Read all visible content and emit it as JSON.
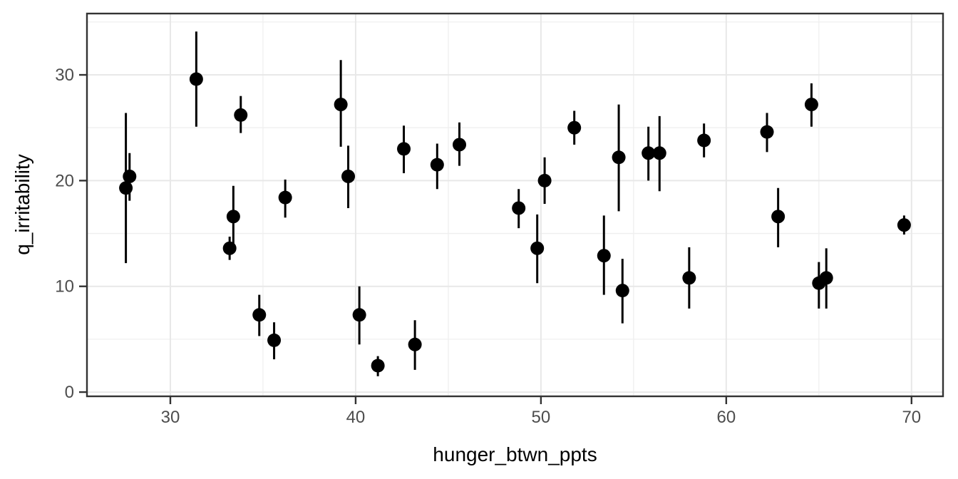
{
  "chart_data": {
    "type": "scatter",
    "subtype": "pointrange",
    "title": "",
    "xlabel": "hunger_btwn_ppts",
    "ylabel": "q_irritability",
    "x_ticks": [
      30,
      40,
      50,
      60,
      70
    ],
    "y_ticks": [
      0,
      10,
      20,
      30
    ],
    "x_minor_gridlines": [
      35,
      45,
      55,
      65
    ],
    "y_minor_gridlines": [
      5,
      15,
      25,
      35
    ],
    "xlim": [
      25.5,
      71.7
    ],
    "ylim": [
      -0.4,
      35.8
    ],
    "grid": "on",
    "legend": "none",
    "points": [
      {
        "x": 27.6,
        "y": 19.3,
        "lo": 12.2,
        "hi": 26.4
      },
      {
        "x": 27.8,
        "y": 20.4,
        "lo": 18.1,
        "hi": 22.6
      },
      {
        "x": 31.4,
        "y": 29.6,
        "lo": 25.1,
        "hi": 34.1
      },
      {
        "x": 33.2,
        "y": 13.6,
        "lo": 12.5,
        "hi": 14.7
      },
      {
        "x": 33.4,
        "y": 16.6,
        "lo": 13.5,
        "hi": 19.5
      },
      {
        "x": 33.8,
        "y": 26.2,
        "lo": 24.5,
        "hi": 28.0
      },
      {
        "x": 34.8,
        "y": 7.3,
        "lo": 5.3,
        "hi": 9.2
      },
      {
        "x": 35.6,
        "y": 4.9,
        "lo": 3.1,
        "hi": 6.6
      },
      {
        "x": 36.2,
        "y": 18.4,
        "lo": 16.5,
        "hi": 20.1
      },
      {
        "x": 39.2,
        "y": 27.2,
        "lo": 23.2,
        "hi": 31.4
      },
      {
        "x": 39.6,
        "y": 20.4,
        "lo": 17.4,
        "hi": 23.3
      },
      {
        "x": 40.2,
        "y": 7.3,
        "lo": 4.5,
        "hi": 10.0
      },
      {
        "x": 41.2,
        "y": 2.5,
        "lo": 1.5,
        "hi": 3.4
      },
      {
        "x": 42.6,
        "y": 23.0,
        "lo": 20.7,
        "hi": 25.2
      },
      {
        "x": 43.2,
        "y": 4.5,
        "lo": 2.1,
        "hi": 6.8
      },
      {
        "x": 44.4,
        "y": 21.5,
        "lo": 19.2,
        "hi": 23.5
      },
      {
        "x": 45.6,
        "y": 23.4,
        "lo": 21.4,
        "hi": 25.5
      },
      {
        "x": 48.8,
        "y": 17.4,
        "lo": 15.5,
        "hi": 19.2
      },
      {
        "x": 49.8,
        "y": 13.6,
        "lo": 10.3,
        "hi": 16.8
      },
      {
        "x": 50.2,
        "y": 20.0,
        "lo": 17.8,
        "hi": 22.2
      },
      {
        "x": 51.8,
        "y": 25.0,
        "lo": 23.4,
        "hi": 26.6
      },
      {
        "x": 53.4,
        "y": 12.9,
        "lo": 9.2,
        "hi": 16.7
      },
      {
        "x": 54.2,
        "y": 22.2,
        "lo": 17.1,
        "hi": 27.2
      },
      {
        "x": 54.4,
        "y": 9.6,
        "lo": 6.5,
        "hi": 12.6
      },
      {
        "x": 55.8,
        "y": 22.6,
        "lo": 20.0,
        "hi": 25.1
      },
      {
        "x": 56.4,
        "y": 22.6,
        "lo": 19.0,
        "hi": 26.1
      },
      {
        "x": 58.0,
        "y": 10.8,
        "lo": 7.9,
        "hi": 13.7
      },
      {
        "x": 58.8,
        "y": 23.8,
        "lo": 22.2,
        "hi": 25.4
      },
      {
        "x": 62.2,
        "y": 24.6,
        "lo": 22.7,
        "hi": 26.4
      },
      {
        "x": 62.8,
        "y": 16.6,
        "lo": 13.7,
        "hi": 19.3
      },
      {
        "x": 64.6,
        "y": 27.2,
        "lo": 25.1,
        "hi": 29.2
      },
      {
        "x": 65.0,
        "y": 10.3,
        "lo": 7.9,
        "hi": 12.3
      },
      {
        "x": 65.4,
        "y": 10.8,
        "lo": 7.9,
        "hi": 13.6
      },
      {
        "x": 69.6,
        "y": 15.8,
        "lo": 14.9,
        "hi": 16.7
      }
    ]
  },
  "style": {
    "point_color": "#000000",
    "range_color": "#000000",
    "panel_background": "#ffffff",
    "panel_border_color": "#333333",
    "grid_major_color": "#e8e8e8",
    "grid_minor_color": "#efefef",
    "tick_mark_color": "#333333",
    "tick_label_color": "#4d4d4d",
    "axis_title_color": "#000000"
  }
}
